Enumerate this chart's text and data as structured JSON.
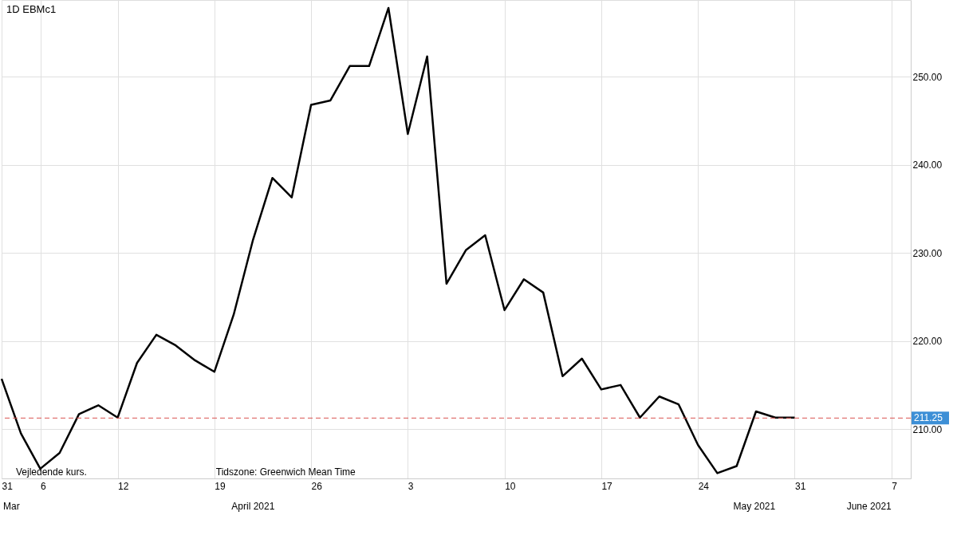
{
  "chart_data": {
    "type": "line",
    "title": "1D EBMc1",
    "categories": [
      "31",
      null,
      "6",
      null,
      null,
      null,
      "12",
      null,
      null,
      null,
      null,
      "19",
      null,
      null,
      null,
      null,
      "26",
      null,
      null,
      null,
      null,
      "3",
      null,
      null,
      null,
      null,
      "10",
      null,
      null,
      null,
      null,
      "17",
      null,
      null,
      null,
      null,
      "24",
      null,
      null,
      null,
      null,
      "31",
      null,
      null,
      null,
      null,
      "7",
      null
    ],
    "series": [
      {
        "color": "#000000",
        "values": [
          215.7,
          209.5,
          205.5,
          207.3,
          211.7,
          212.7,
          211.3,
          217.5,
          220.7,
          219.5,
          217.8,
          216.5,
          223,
          231.5,
          238.5,
          236.3,
          246.8,
          247.3,
          251.2,
          251.2,
          257.8,
          243.5,
          252.3,
          226.5,
          230.3,
          232,
          223.5,
          227,
          225.5,
          216,
          218,
          214.5,
          215,
          211.3,
          213.7,
          212.8,
          208.2,
          205,
          205.8,
          212,
          211.3,
          211.3,
          null,
          null,
          null,
          null,
          null,
          null
        ]
      }
    ],
    "ylim": [
      204.4,
      258.7
    ],
    "yticks": [
      {
        "value": 210,
        "label": "210.00"
      },
      {
        "value": 220,
        "label": "220.00"
      },
      {
        "value": 230,
        "label": "230.00"
      },
      {
        "value": 240,
        "label": "240.00"
      },
      {
        "value": 250,
        "label": "250.00"
      }
    ],
    "ref_lines": [
      {
        "axis": "y",
        "value": 211.25,
        "label": "211.25",
        "color": "#d9534f",
        "line_style": "dashed"
      }
    ],
    "annotations": [
      "Vejledende kurs.",
      "Tidszone: Greenwich Mean Time",
      "Mar",
      "April 2021",
      "May 2021",
      "June 2021"
    ],
    "grid": true,
    "marker": "none",
    "line_style": "solid"
  }
}
